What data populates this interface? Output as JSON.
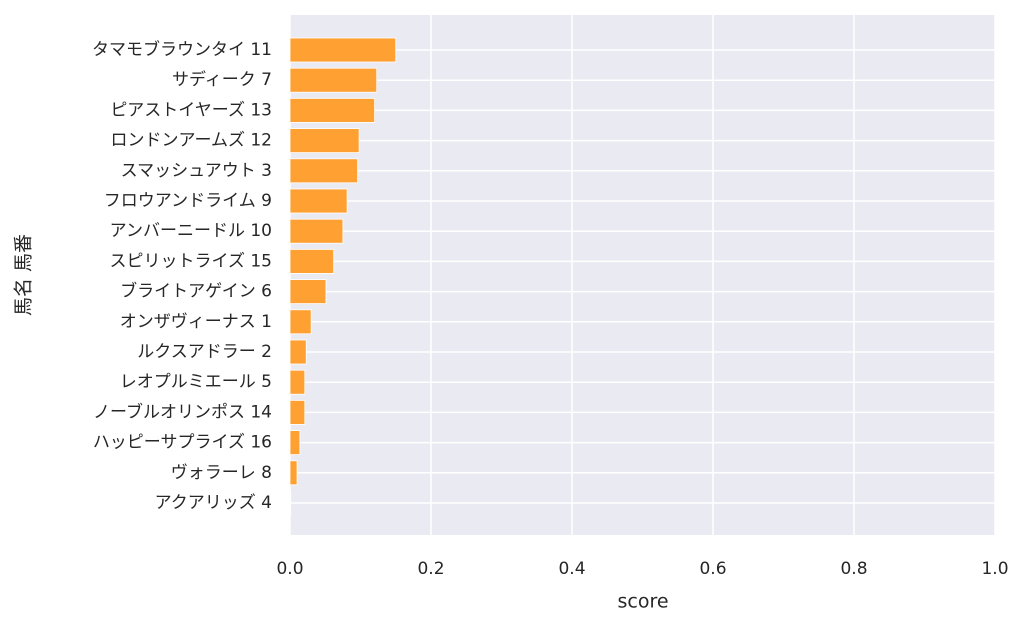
{
  "chart_data": {
    "type": "barh",
    "xlabel": "score",
    "ylabel": "馬名 馬番",
    "categories": [
      "タマモブラウンタイ 11",
      "サディーク 7",
      "ピアストイヤーズ 13",
      "ロンドンアームズ 12",
      "スマッシュアウト 3",
      "フロウアンドライム 9",
      "アンバーニードル 10",
      "スピリットライズ 15",
      "ブライトアゲイン 6",
      "オンザヴィーナス 1",
      "ルクスアドラー 2",
      "レオプルミエール 5",
      "ノーブルオリンポス 14",
      "ハッピーサプライズ 16",
      "ヴォラーレ 8",
      "アクアリッズ 4"
    ],
    "values": [
      0.15,
      0.123,
      0.12,
      0.098,
      0.096,
      0.081,
      0.075,
      0.062,
      0.051,
      0.03,
      0.023,
      0.021,
      0.021,
      0.014,
      0.01,
      0.001
    ],
    "color": "#ffa032",
    "xlim": [
      0,
      1
    ],
    "xticks": [
      {
        "value": 0,
        "label": "0.0"
      },
      0.2,
      0.4,
      0.6,
      0.8,
      {
        "value": 1,
        "label": "1.0"
      }
    ],
    "grid": true
  }
}
